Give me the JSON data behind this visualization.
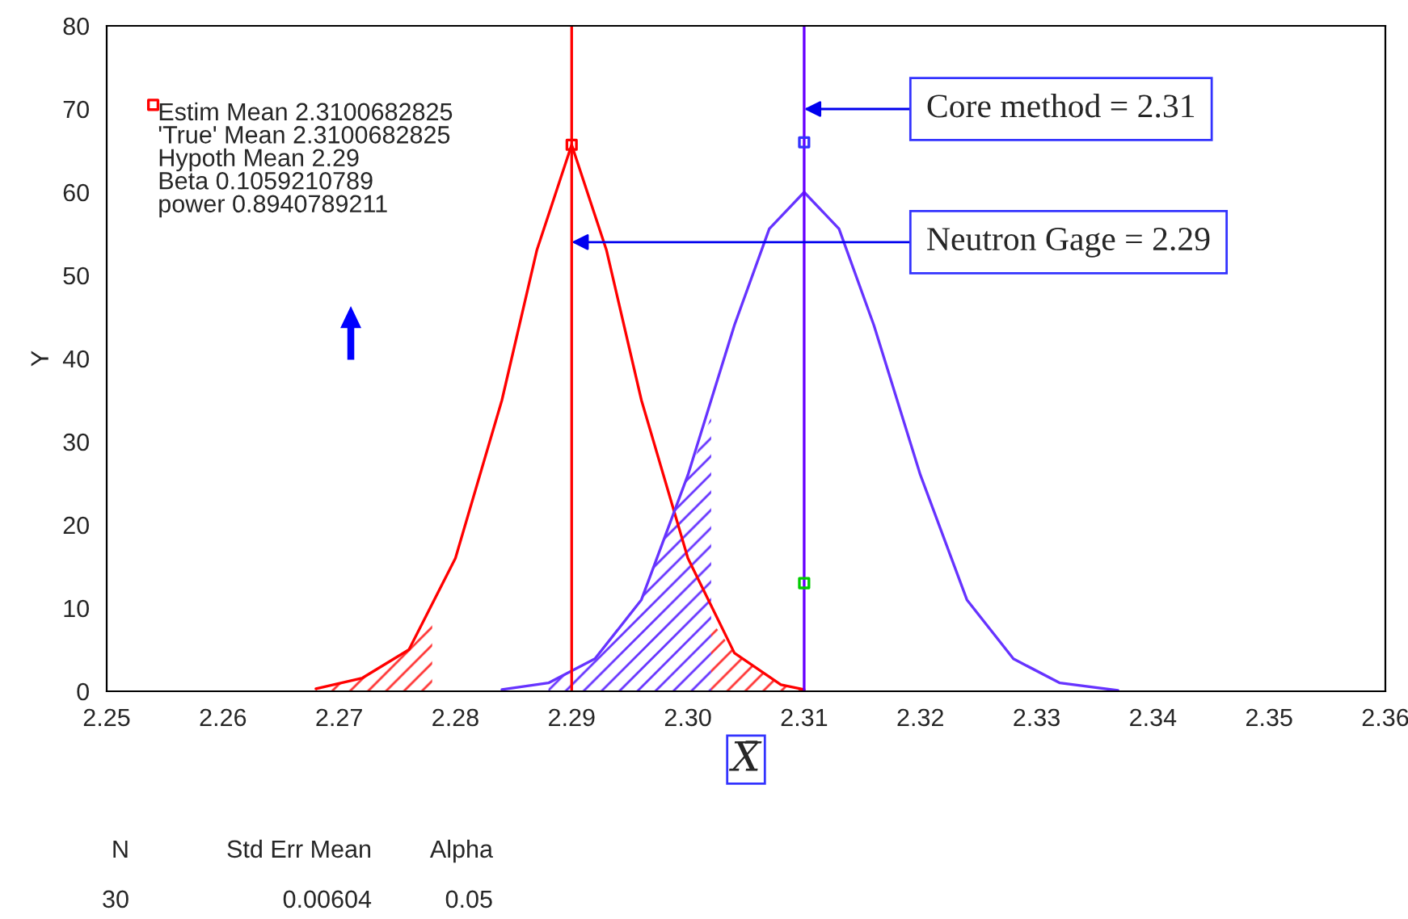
{
  "chart_data": {
    "type": "line",
    "xlabel": "X̄",
    "ylabel": "Y",
    "xlim": [
      2.25,
      2.36
    ],
    "xticks": [
      {
        "value": 2.25,
        "label": "2.25"
      },
      {
        "value": 2.26,
        "label": "2.26"
      },
      {
        "value": 2.27,
        "label": "2.27"
      },
      {
        "value": 2.28,
        "label": "2.28"
      },
      {
        "value": 2.29,
        "label": "2.29"
      },
      {
        "value": 2.3,
        "label": "2.30"
      },
      {
        "value": 2.31,
        "label": "2.31"
      },
      {
        "value": 2.32,
        "label": "2.32"
      },
      {
        "value": 2.33,
        "label": "2.33"
      },
      {
        "value": 2.34,
        "label": "2.34"
      },
      {
        "value": 2.35,
        "label": "2.35"
      },
      {
        "value": 2.36,
        "label": "2.36"
      }
    ],
    "ylim": [
      0,
      80
    ],
    "yticks": [
      0,
      10,
      20,
      30,
      40,
      50,
      60,
      70,
      80
    ],
    "grid": false,
    "legend": false,
    "line_style": "solid",
    "series": [
      {
        "color": "#ff0000",
        "x": [
          2.268,
          2.272,
          2.276,
          2.28,
          2.284,
          2.287,
          2.29,
          2.293,
          2.296,
          2.3,
          2.304,
          2.308,
          2.31
        ],
        "values": [
          0.3,
          1.6,
          5,
          16,
          35,
          53,
          65.7,
          53,
          35,
          16,
          4.6,
          0.8,
          0.2
        ]
      },
      {
        "color": "#6633ff",
        "x": [
          2.284,
          2.288,
          2.292,
          2.296,
          2.3,
          2.304,
          2.307,
          2.31,
          2.313,
          2.316,
          2.32,
          2.324,
          2.328,
          2.332,
          2.337
        ],
        "values": [
          0.2,
          1,
          3.9,
          11,
          26,
          44,
          55.6,
          60,
          55.6,
          44,
          26,
          11,
          3.9,
          1,
          0.1
        ]
      },
      {
        "type": "area",
        "color": "#ff3333",
        "x": [
          2.268,
          2.272,
          2.276,
          2.278
        ],
        "values": [
          0.3,
          1.6,
          5,
          8.4
        ]
      },
      {
        "type": "area",
        "color": "#ff3333",
        "x": [
          2.302,
          2.304,
          2.308,
          2.31
        ],
        "values": [
          8.5,
          4.6,
          0.8,
          0.2
        ]
      },
      {
        "type": "area",
        "color": "#6633ff",
        "x": [
          2.288,
          2.292,
          2.296,
          2.3,
          2.302
        ],
        "values": [
          1,
          3.9,
          11,
          26,
          33
        ]
      },
      {
        "type": "scatter",
        "marker": "square",
        "colors": [
          "#ff0000",
          "#ff0000",
          "#3333ff",
          "#00cc00"
        ],
        "x": [
          2.254,
          2.29,
          2.31,
          2.31
        ],
        "values": [
          70.5,
          65.7,
          66,
          13
        ]
      }
    ],
    "ref_lines": [
      {
        "axis": "x",
        "value": 2.29,
        "color": "#ff0000"
      },
      {
        "axis": "x",
        "value": 2.31,
        "color": "#6600ff"
      }
    ],
    "annotations": [
      "Estim Mean 2.3100682825\n'True' Mean 2.3100682825\nHypoth Mean 2.29\nBeta 0.1059210789\npower 0.8940789211",
      {
        "text": "Core method = 2.31",
        "x": 2.31,
        "y": 70
      },
      {
        "text": "Neutron Gage = 2.29",
        "x": 2.29,
        "y": 54
      },
      "N",
      "Std Err Mean",
      "Alpha",
      "30",
      "0.00604",
      "0.05"
    ]
  }
}
